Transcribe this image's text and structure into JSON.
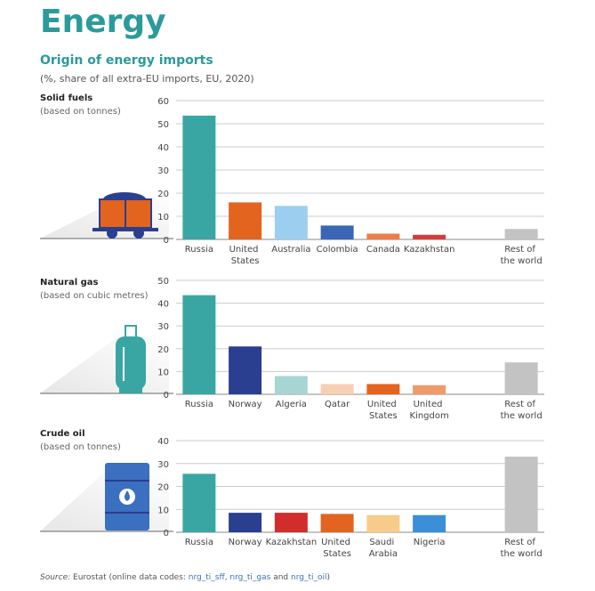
{
  "title": "Energy",
  "subtitle": "Origin of energy imports",
  "note": "(%, share of all extra-EU imports, EU, 2020)",
  "source": [
    "Source:",
    " Eurostat (online data codes: ",
    "nrg_ti_sff",
    ", ",
    "nrg_ti_gas",
    " and ",
    "nrg_ti_oil",
    ")"
  ],
  "chart_data": [
    {
      "type": "bar",
      "title": "Solid fuels",
      "subtitle": "(based on tonnes)",
      "categories": [
        "Russia",
        "United States",
        "Australia",
        "Colombia",
        "Canada",
        "Kazakhstan",
        null,
        "Rest of the world"
      ],
      "values": [
        53.5,
        16,
        14.5,
        6,
        2.5,
        2,
        null,
        4.5
      ],
      "colors": [
        "#3aa6a4",
        "#e2641f",
        "#9ccfef",
        "#3a66b5",
        "#ee7d4a",
        "#d63a3a",
        null,
        "#c3c3c3"
      ],
      "ylim": [
        0,
        60
      ],
      "yticks": [
        0,
        10,
        20,
        30,
        40,
        50,
        60
      ],
      "grid": true
    },
    {
      "type": "bar",
      "title": "Natural gas",
      "subtitle": "(based on cubic metres)",
      "categories": [
        "Russia",
        "Norway",
        "Algeria",
        "Qatar",
        "United States",
        "United Kingdom",
        null,
        "Rest of the world"
      ],
      "values": [
        43.5,
        21,
        8,
        4.5,
        4.5,
        4,
        null,
        14
      ],
      "colors": [
        "#3aa6a4",
        "#2a3f8f",
        "#a7d5d3",
        "#f7cfb3",
        "#e2641f",
        "#f09a6a",
        null,
        "#c3c3c3"
      ],
      "ylim": [
        0,
        50
      ],
      "yticks": [
        0,
        10,
        20,
        30,
        40,
        50
      ],
      "grid": true
    },
    {
      "type": "bar",
      "title": "Crude oil",
      "subtitle": "(based on tonnes)",
      "categories": [
        "Russia",
        "Norway",
        "Kazakhstan",
        "United States",
        "Saudi Arabia",
        "Nigeria",
        null,
        "Rest of the world"
      ],
      "values": [
        25.5,
        8.5,
        8.5,
        8,
        7.5,
        7.5,
        null,
        33
      ],
      "colors": [
        "#3aa6a4",
        "#2a3f8f",
        "#d12d2d",
        "#e2641f",
        "#f7cc8a",
        "#3b8fd9",
        null,
        "#c3c3c3"
      ],
      "ylim": [
        0,
        40
      ],
      "yticks": [
        0,
        10,
        20,
        30,
        40
      ],
      "grid": true
    }
  ]
}
